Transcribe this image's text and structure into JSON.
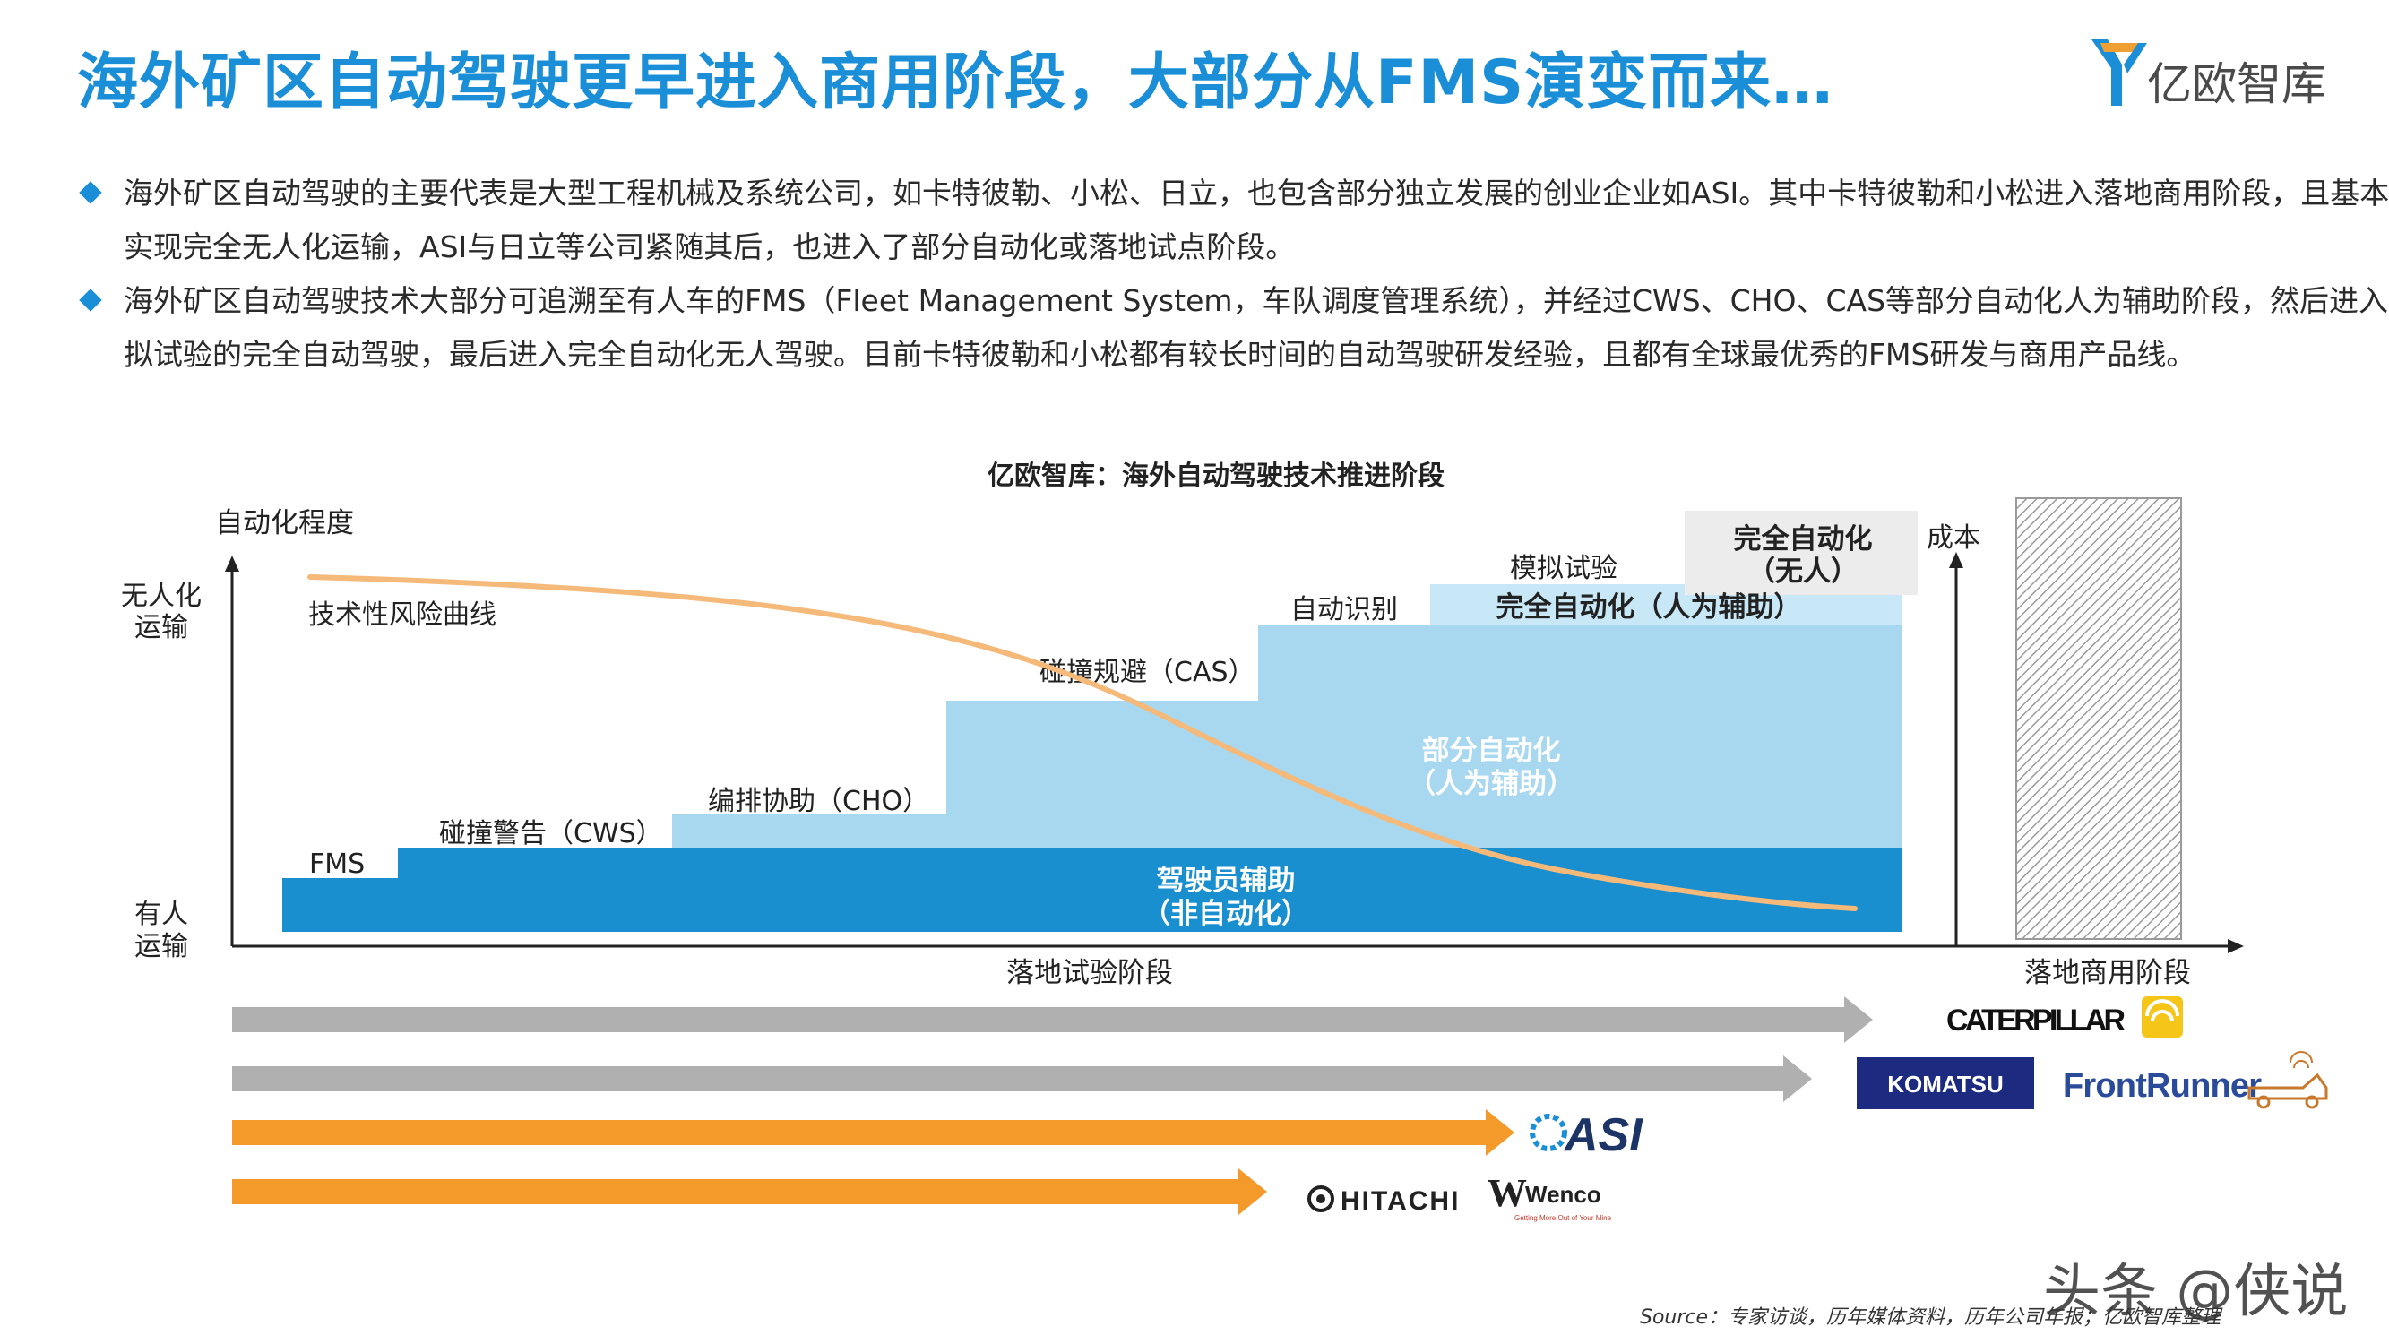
{
  "header": {
    "title": "海外矿区自动驾驶更早进入商用阶段，大部分从FMS演变而来…",
    "brand": "亿欧智库"
  },
  "bullets": [
    "海外矿区自动驾驶的主要代表是大型工程机械及系统公司，如卡特彼勒、小松、日立，也包含部分独立发展的创业企业如ASI。其中卡特彼勒和小松进入落地商用阶段，且基本可实现完全无人化运输，ASI与日立等公司紧随其后，也进入了部分自动化或落地试点阶段。",
    "海外矿区自动驾驶技术大部分可追溯至有人车的FMS（Fleet Management System，车队调度管理系统），并经过CWS、CHO、CAS等部分自动化人为辅助阶段，然后进入模拟试验的完全自动驾驶，最后进入完全自动化无人驾驶。目前卡特彼勒和小松都有较长时间的自动驾驶研发经验，且都有全球最优秀的FMS研发与商用产品线。"
  ],
  "diagram": {
    "title": "亿欧智库：海外自动驾驶技术推进阶段",
    "y_axis_label": "自动化程度",
    "y_top_label_1": "无人化",
    "y_top_label_2": "运输",
    "y_bottom_label_1": "有人",
    "y_bottom_label_2": "运输",
    "curve_label": "技术性风险曲线",
    "cost_label": "成本",
    "x_left_label": "落地试验阶段",
    "x_right_label": "落地商用阶段",
    "steps": {
      "fms": "FMS",
      "cws": "碰撞警告（CWS）",
      "cho": "编排协助（CHO）",
      "cas": "碰撞规避（CAS）",
      "auto_recog": "自动识别",
      "sim_test": "模拟试验"
    },
    "bands": {
      "driver_assist_1": "驾驶员辅助",
      "driver_assist_2": "（非自动化）",
      "partial_auto_1": "部分自动化",
      "partial_auto_2": "（人为辅助）",
      "full_auto_assisted": "完全自动化（人为辅助）",
      "full_auto_unmanned_1": "完全自动化",
      "full_auto_unmanned_2": "（无人）"
    },
    "companies": {
      "caterpillar": "CATERPILLAR",
      "komatsu": "KOMATSU",
      "frontrunner": "FrontRunner",
      "asi": "ASI",
      "hitachi": "HITACHI",
      "wenco": "Wenco",
      "wenco_tagline": "Getting More Out of Your Mine"
    },
    "colors": {
      "dark_blue": "#1a8fd0",
      "mid_blue": "#a8d8f0",
      "light_blue": "#c8e8f8",
      "curve": "#f5b97a",
      "grey_arrow": "#b0b0b0",
      "orange_arrow": "#f39a2b"
    }
  },
  "source": "Source：专家访谈，历年媒体资料，历年公司年报；亿欧智库整理",
  "watermark": "头条 @侠说"
}
